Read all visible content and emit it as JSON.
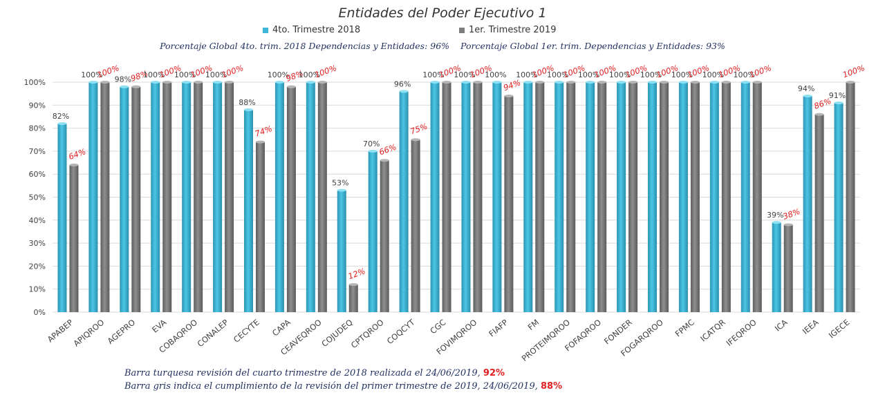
{
  "colors": {
    "series1": "#3fb7d8",
    "series2": "#7d7d7d",
    "value2_label": "#e02020",
    "note_text": "#1f2f5e",
    "grid": "#d9d9d9"
  },
  "summary": {
    "left": "Porcentaje Global 4to. trim. 2018 Dependencias y Entidades: 96%",
    "right": "Porcentaje Global 1er. trim. Dependencias y Entidades: 93%"
  },
  "notes": [
    {
      "text": "Barra turquesa revisión del cuarto trimestre de 2018 realizada el 24/06/2019, ",
      "highlight": "92%"
    },
    {
      "text": "Barra gris indica el cumplimiento de la revisión del primer trimestre de 2019, 24/06/2019, ",
      "highlight": "88%"
    }
  ],
  "chart_data": {
    "type": "bar",
    "title": "Entidades del Poder Ejecutivo 1",
    "categories": [
      "APABEP",
      "APIQROO",
      "AGEPRO",
      "EVA",
      "COBAQROO",
      "CONALEP",
      "CECYTE",
      "CAPA",
      "CEAVEQROO",
      "COJUDEQ",
      "CPTQROO",
      "COQCYT",
      "CGC",
      "FOVIMQROO",
      "FIAFP",
      "FM",
      "PROTEIMQROO",
      "FOFAQROO",
      "FONDER",
      "FOGARQROO",
      "FPMC",
      "ICATQR",
      "IFEQROO",
      "ICA",
      "IEEA",
      "IGECE"
    ],
    "series": [
      {
        "name": "4to. Trimestre 2018",
        "values": [
          82,
          100,
          98,
          100,
          100,
          100,
          88,
          100,
          100,
          53,
          70,
          96,
          100,
          100,
          100,
          100,
          100,
          100,
          100,
          100,
          100,
          100,
          100,
          39,
          94,
          91
        ]
      },
      {
        "name": "1er. Trimestre 2019",
        "values": [
          64,
          100,
          98,
          100,
          100,
          100,
          74,
          98,
          100,
          12,
          66,
          75,
          100,
          100,
          94,
          100,
          100,
          100,
          100,
          100,
          100,
          100,
          100,
          38,
          86,
          100
        ]
      }
    ],
    "labels": [
      [
        "82%",
        "100%",
        "98%",
        "100%",
        "100%",
        "100%",
        "88%",
        "100%",
        "100%",
        "53%",
        "70%",
        "96%",
        "100%",
        "100%",
        "100%",
        "100%",
        "100%",
        "100%",
        "100%",
        "100%",
        "100%",
        "100%",
        "100%",
        "39%",
        "94%",
        "91%"
      ],
      [
        "64%",
        "100%",
        "98%",
        "100%",
        "100%",
        "100%",
        "74%",
        "98%",
        "100%",
        "12%",
        "66%",
        "75%",
        "100%",
        "100%",
        "94%",
        "100%",
        "100%",
        "100%",
        "100%",
        "100%",
        "100%",
        "100%",
        "100%",
        "38%",
        "86%",
        "100%"
      ]
    ],
    "ylim": [
      0,
      100
    ],
    "yticks": [
      "0%",
      "10%",
      "20%",
      "30%",
      "40%",
      "50%",
      "60%",
      "70%",
      "80%",
      "90%",
      "100%"
    ],
    "grid": true,
    "legend_position": "top"
  }
}
